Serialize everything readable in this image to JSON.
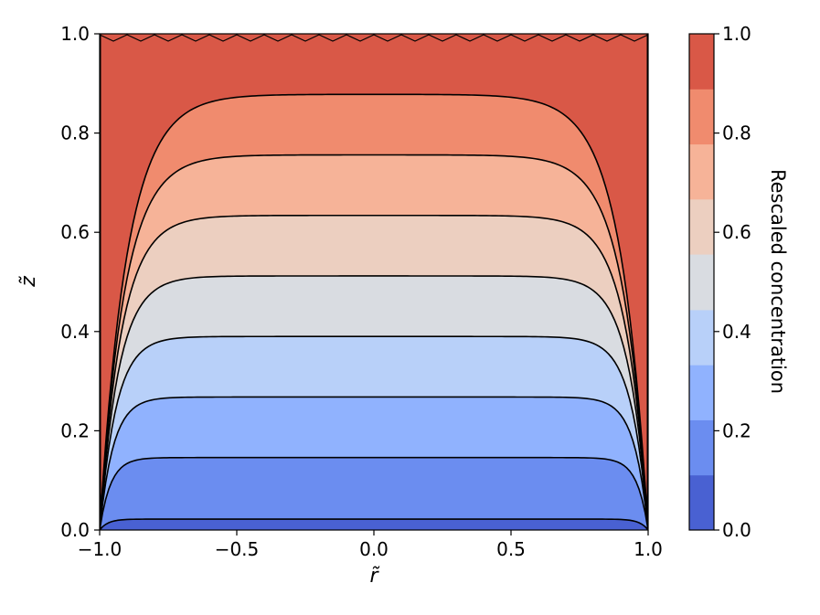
{
  "chart_data": {
    "type": "contourf",
    "xlabel": "r̃",
    "ylabel": "z̃",
    "xlim": [
      -1.0,
      1.0
    ],
    "ylim": [
      0.0,
      1.0
    ],
    "xticks": [
      -1.0,
      -0.5,
      0.0,
      0.5,
      1.0
    ],
    "xtick_labels": [
      "−1.0",
      "−0.5",
      "0.0",
      "0.5",
      "1.0"
    ],
    "yticks": [
      0.0,
      0.2,
      0.4,
      0.6,
      0.8,
      1.0
    ],
    "ytick_labels": [
      "0.0",
      "0.2",
      "0.4",
      "0.6",
      "0.8",
      "1.0"
    ],
    "colormap": "coolwarm",
    "colorbar": {
      "label": "Rescaled concentration",
      "range": [
        0.0,
        1.0
      ],
      "ticks": [
        0.0,
        0.2,
        0.4,
        0.6,
        0.8,
        1.0
      ],
      "tick_labels": [
        "0.0",
        "0.2",
        "0.4",
        "0.6",
        "0.8",
        "1.0"
      ]
    },
    "levels": [
      0.0,
      0.111,
      0.222,
      0.333,
      0.444,
      0.556,
      0.667,
      0.778,
      0.889,
      1.0
    ],
    "level_colors": [
      "#4961d2",
      "#6b8df0",
      "#90b2fe",
      "#b8d0f9",
      "#d9dce1",
      "#eccfc0",
      "#f6b398",
      "#f08b6e",
      "#d95847"
    ],
    "contour_lines": [
      {
        "level": 0.111,
        "z_center": 0.022,
        "edge_width": 0.03
      },
      {
        "level": 0.222,
        "z_center": 0.146,
        "edge_width": 0.04
      },
      {
        "level": 0.333,
        "z_center": 0.268,
        "edge_width": 0.05
      },
      {
        "level": 0.444,
        "z_center": 0.39,
        "edge_width": 0.06
      },
      {
        "level": 0.556,
        "z_center": 0.512,
        "edge_width": 0.07
      },
      {
        "level": 0.667,
        "z_center": 0.634,
        "edge_width": 0.08
      },
      {
        "level": 0.778,
        "z_center": 0.756,
        "edge_width": 0.09
      },
      {
        "level": 0.889,
        "z_center": 0.878,
        "edge_width": 0.1
      }
    ]
  }
}
